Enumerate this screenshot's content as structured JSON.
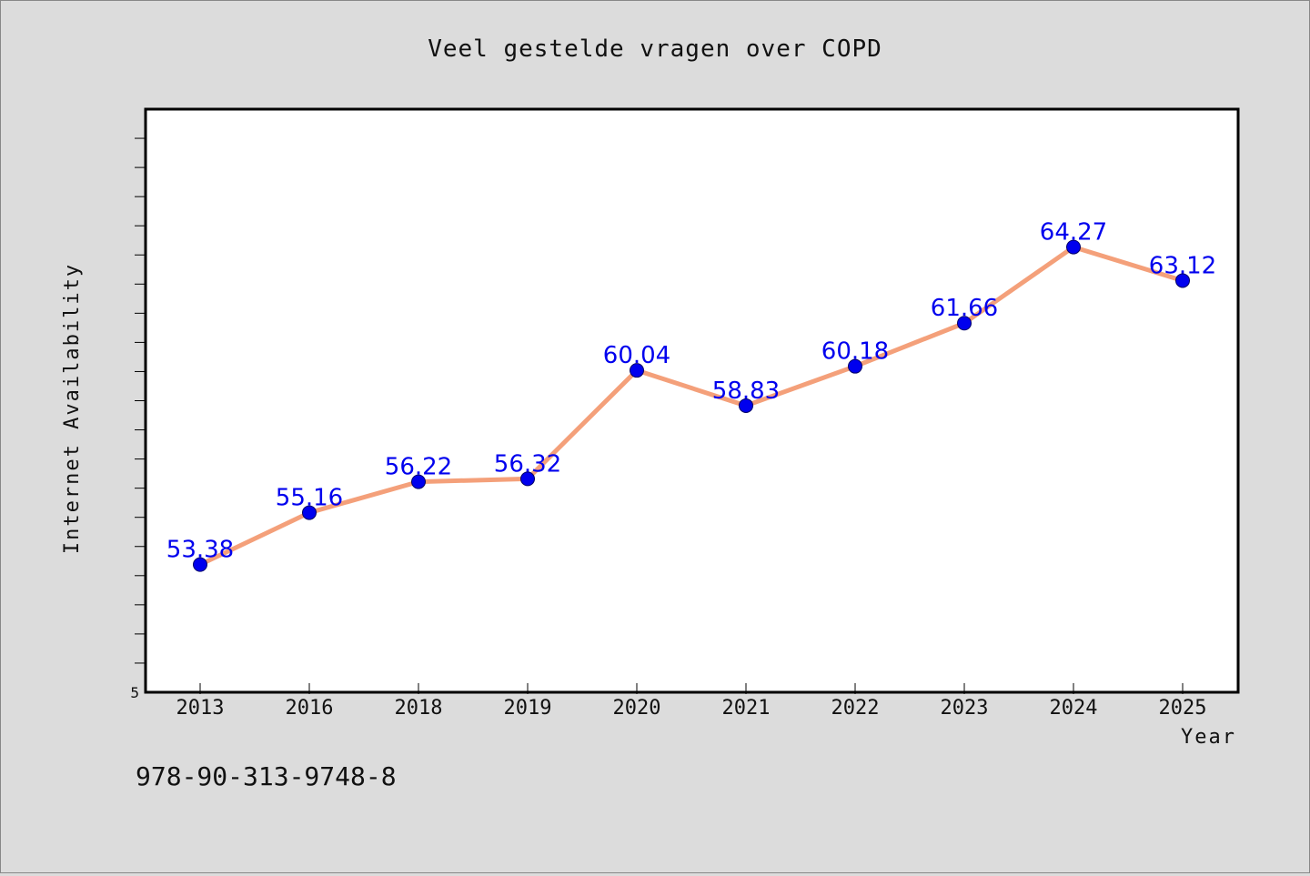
{
  "chart_data": {
    "type": "line",
    "title": "Veel gestelde vragen over COPD",
    "xlabel": "Year",
    "ylabel": "Internet Availability",
    "categories": [
      "2013",
      "2016",
      "2018",
      "2019",
      "2020",
      "2021",
      "2022",
      "2023",
      "2024",
      "2025"
    ],
    "series": [
      {
        "values": [
          53.38,
          55.16,
          56.22,
          56.32,
          60.04,
          58.83,
          60.18,
          61.66,
          64.27,
          63.12
        ]
      }
    ],
    "ylim": [
      49.0,
      69.0
    ],
    "ytick_labels": [
      {
        "value": 49.0,
        "label": "5"
      }
    ],
    "grid": false,
    "legend": "none",
    "colors": {
      "line": "#f4a07a",
      "marker": "#0000ee",
      "data_label": "#0000ee",
      "plot_background": "#ffffff",
      "figure_background": "#dcdcdc"
    }
  },
  "footnote": "978-90-313-9748-8"
}
